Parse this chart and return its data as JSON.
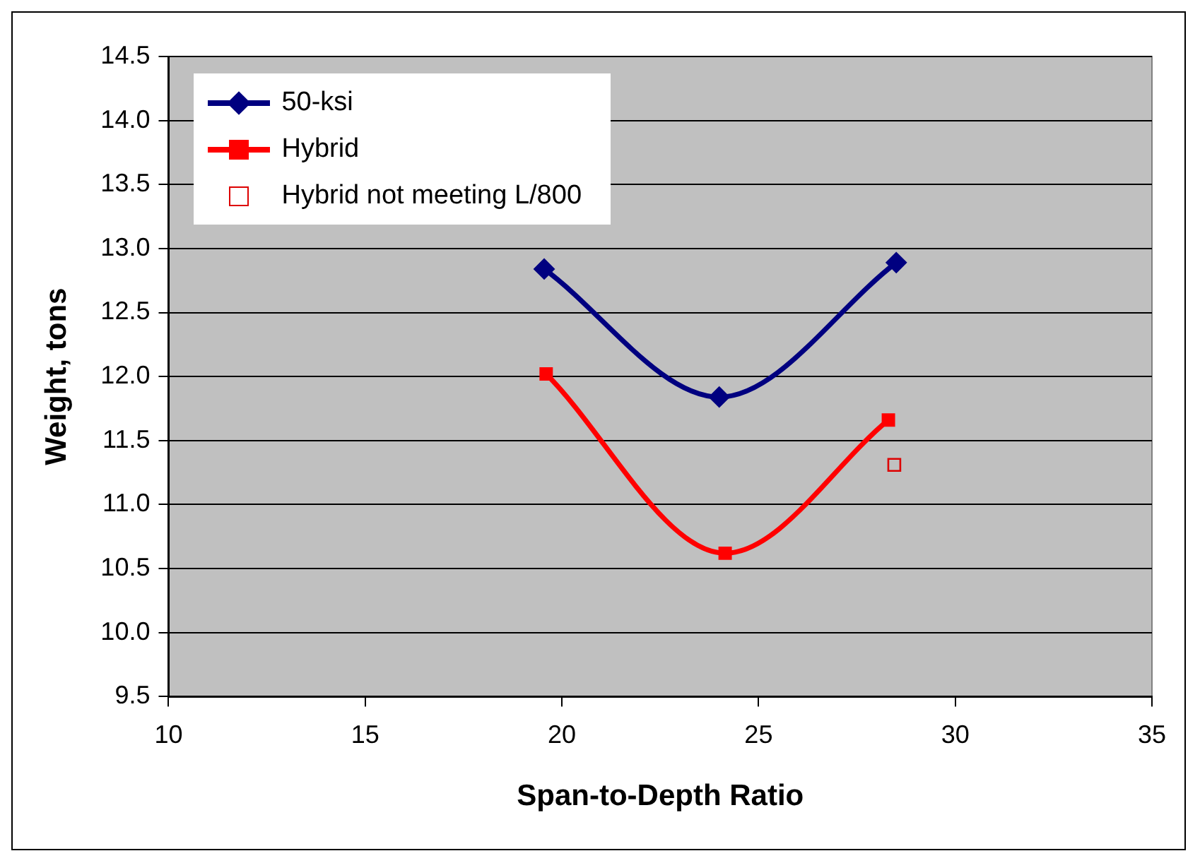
{
  "chart_data": {
    "type": "line",
    "xlabel": "Span-to-Depth Ratio",
    "ylabel": "Weight, tons",
    "xlim": [
      10,
      35
    ],
    "xticks": [
      10,
      15,
      20,
      25,
      30,
      35
    ],
    "ylim": [
      9.5,
      14.5
    ],
    "yticks": [
      {
        "value": 9.5,
        "label": "9.5"
      },
      {
        "value": 10,
        "label": "10.0"
      },
      {
        "value": 10.5,
        "label": "10.5"
      },
      {
        "value": 11,
        "label": "11.0"
      },
      {
        "value": 11.5,
        "label": "11.5"
      },
      {
        "value": 12,
        "label": "12.0"
      },
      {
        "value": 12.5,
        "label": "12.5"
      },
      {
        "value": 13,
        "label": "13.0"
      },
      {
        "value": 13.5,
        "label": "13.5"
      },
      {
        "value": 14,
        "label": "14.0"
      },
      {
        "value": 14.5,
        "label": "14.5"
      }
    ],
    "grid": "y",
    "legend": "top left",
    "series": [
      {
        "name": "50-ksi",
        "type": "line",
        "marker": "diamond",
        "color": "#000080",
        "x": [
          19.55,
          24.0,
          28.5
        ],
        "values": [
          12.84,
          11.84,
          12.89
        ]
      },
      {
        "name": "Hybrid",
        "type": "line",
        "marker": "square",
        "color": "#ff0000",
        "x": [
          19.6,
          24.15,
          28.3
        ],
        "values": [
          12.02,
          10.62,
          11.66
        ]
      },
      {
        "name": "Hybrid not meeting L/800",
        "type": "scatter",
        "marker": "square",
        "color": "#dd0000",
        "x": [
          28.45
        ],
        "values": [
          11.31
        ]
      }
    ]
  }
}
